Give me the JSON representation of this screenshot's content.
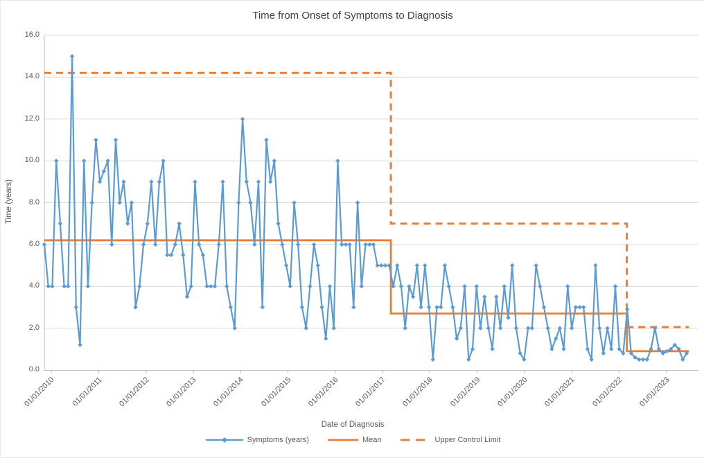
{
  "chart_data": {
    "type": "line",
    "title": "Time from Onset of Symptoms to Diagnosis",
    "xlabel": "Date of Diagnosis",
    "ylabel": "Time (years)",
    "ylim": [
      0,
      16
    ],
    "y_tick_labels": [
      "16.0",
      "14.0",
      "12.0",
      "10.0",
      "8.0",
      "6.0",
      "4.0",
      "2.0",
      "0.0"
    ],
    "x_tick_labels": [
      "01/01/2010",
      "01/01/2011",
      "01/01/2012",
      "01/01/2013",
      "01/01/2014",
      "01/01/2015",
      "01/01/2016",
      "01/01/2017",
      "01/01/2018",
      "01/01/2019",
      "01/01/2020",
      "01/01/2021",
      "01/01/2022",
      "01/01/2023"
    ],
    "x_unit": "months since Jan 2010, monthly points",
    "grid": "horizontal only",
    "legend_position": "bottom",
    "colors": {
      "symptoms": "#5B9BD5",
      "mean": "#ED7D31",
      "ucl": "#ED7D31",
      "gridline": "#D9D9D9",
      "axis": "#BFBFBF",
      "text": "#595959",
      "title": "#404040"
    },
    "series": [
      {
        "name": "Symptoms (years)",
        "marker": "diamond",
        "style": "solid",
        "values": [
          6,
          4,
          4,
          10,
          7,
          4,
          4,
          15,
          3,
          1.2,
          10,
          4,
          8,
          11,
          9,
          9.5,
          10,
          6,
          11,
          8,
          9,
          7,
          8,
          3,
          4,
          6,
          7,
          9,
          6,
          9,
          10,
          5.5,
          5.5,
          6,
          7,
          5.5,
          3.5,
          4,
          9,
          6,
          5.5,
          4,
          4,
          4,
          6,
          9,
          4,
          3,
          2,
          8,
          12,
          9,
          8,
          6,
          9,
          3,
          11,
          9,
          10,
          7,
          6,
          5,
          4,
          8,
          6,
          3,
          2,
          4,
          6,
          5,
          3,
          1.5,
          4,
          2,
          10,
          6,
          6,
          6,
          3,
          8,
          4,
          6,
          6,
          6,
          5,
          5,
          5,
          5,
          4,
          5,
          4,
          2,
          4,
          3.5,
          5,
          3,
          5,
          3,
          0.5,
          3,
          3,
          5,
          4,
          3,
          1.5,
          2,
          4,
          0.5,
          1,
          4,
          2,
          3.5,
          2,
          1,
          3.5,
          2,
          4,
          2.5,
          5,
          2,
          0.8,
          0.5,
          2,
          2,
          5,
          4,
          3,
          2,
          1,
          1.5,
          2,
          1,
          4,
          2,
          3,
          3,
          3,
          1,
          0.5,
          5,
          2,
          0.8,
          2,
          1,
          4,
          1,
          0.8,
          2.9,
          0.8,
          0.6,
          0.5,
          0.5,
          0.5,
          1,
          2,
          1,
          0.8,
          0.9,
          1,
          1.2,
          1,
          0.5,
          0.8
        ]
      },
      {
        "name": "Mean",
        "style": "solid",
        "segments": [
          {
            "from_month": 0,
            "to_month": 87.4,
            "value": 6.2
          },
          {
            "from_month": 87.4,
            "to_month": 146.9,
            "value": 2.7
          },
          {
            "from_month": 146.9,
            "to_month": 162.6,
            "value": 0.9
          }
        ]
      },
      {
        "name": "Upper Control Limit",
        "style": "dashed",
        "segments": [
          {
            "from_month": 0,
            "to_month": 87.4,
            "value": 14.2
          },
          {
            "from_month": 87.4,
            "to_month": 146.9,
            "value": 7.0
          },
          {
            "from_month": 146.9,
            "to_month": 162.6,
            "value": 2.05
          }
        ]
      }
    ]
  }
}
